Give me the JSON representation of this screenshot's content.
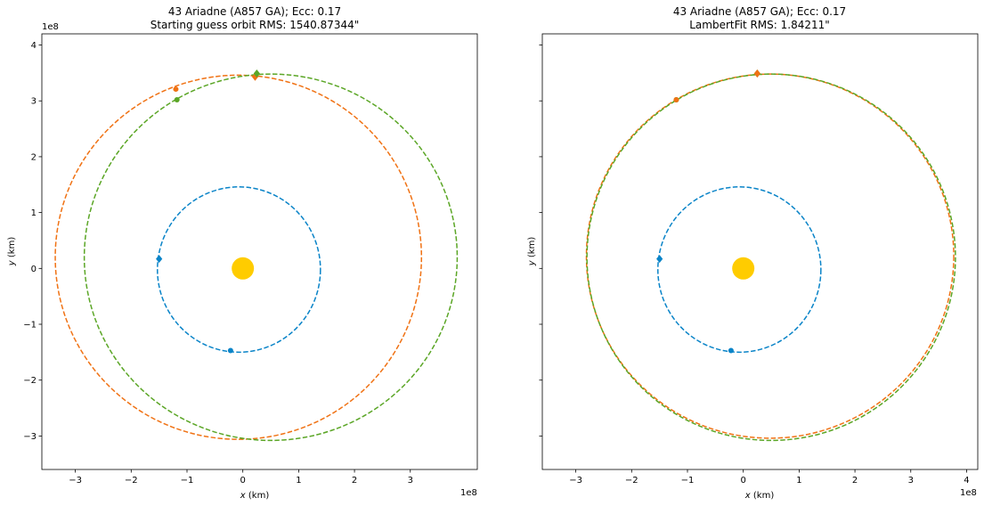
{
  "chart_data": [
    {
      "type": "scatter",
      "title_line1": "43 Ariadne (A857 GA); Ecc: 0.17",
      "title_line2": "Starting guess orbit RMS: 1540.87344\"",
      "xlabel": "x (km)",
      "ylabel": "y (km)",
      "x_offset_label": "1e8",
      "y_offset_label": "1e8",
      "xlim": [
        -3.6,
        4.2
      ],
      "ylim": [
        -3.6,
        4.2
      ],
      "xticks": [
        -3,
        -2,
        -1,
        0,
        1,
        2,
        3
      ],
      "yticks": [
        -3,
        -2,
        -1,
        0,
        1,
        2,
        3,
        4
      ],
      "tick_labels": [
        "−3",
        "−2",
        "−1",
        "0",
        "1",
        "2",
        "3",
        "4"
      ],
      "show_yticklabels": true,
      "sun": {
        "x": 0,
        "y": 0,
        "color": "#FFCC00"
      },
      "orbits": [
        {
          "color": "#1f77b4",
          "shade": "#0a84c8",
          "cx": -0.07,
          "cy": -0.02,
          "rx": 1.46,
          "ry": 1.48,
          "style": "dashed"
        },
        {
          "color": "#ff7f0e",
          "shade": "#f07214",
          "cx": -0.08,
          "cy": 0.2,
          "rx": 3.28,
          "ry": 3.26,
          "style": "dashed"
        },
        {
          "color": "#2ca02c",
          "shade": "#5ba626",
          "cx": 0.5,
          "cy": 0.2,
          "rx": 3.34,
          "ry": 3.28,
          "style": "dashed"
        }
      ],
      "points": [
        {
          "x": -1.5,
          "y": 0.17,
          "marker": "diamond",
          "color": "#0a84c8"
        },
        {
          "x": -0.22,
          "y": -1.47,
          "marker": "circle",
          "color": "#0a84c8"
        },
        {
          "x": 0.22,
          "y": 3.43,
          "marker": "diamond",
          "color": "#f07214"
        },
        {
          "x": -1.2,
          "y": 3.21,
          "marker": "circle",
          "color": "#f07214"
        },
        {
          "x": 0.25,
          "y": 3.49,
          "marker": "diamond",
          "color": "#5ba626"
        },
        {
          "x": -1.18,
          "y": 3.02,
          "marker": "circle",
          "color": "#5ba626"
        }
      ]
    },
    {
      "type": "scatter",
      "title_line1": "43 Ariadne (A857 GA); Ecc: 0.17",
      "title_line2": "LambertFit RMS: 1.84211\"",
      "xlabel": "x (km)",
      "ylabel": "y (km)",
      "x_offset_label": "1e8",
      "y_offset_label": "",
      "xlim": [
        -3.6,
        4.2
      ],
      "ylim": [
        -3.6,
        4.2
      ],
      "xticks": [
        -3,
        -2,
        -1,
        0,
        1,
        2,
        3,
        4
      ],
      "yticks": [
        -3,
        -2,
        -1,
        0,
        1,
        2,
        3,
        4
      ],
      "tick_labels": [
        "−3",
        "−2",
        "−1",
        "0",
        "1",
        "2",
        "3",
        "4"
      ],
      "show_yticklabels": false,
      "sun": {
        "x": 0,
        "y": 0,
        "color": "#FFCC00"
      },
      "orbits": [
        {
          "color": "#1f77b4",
          "shade": "#0a84c8",
          "cx": -0.07,
          "cy": -0.02,
          "rx": 1.46,
          "ry": 1.48,
          "style": "dashed"
        },
        {
          "color": "#ff7f0e",
          "shade": "#f07214",
          "cx": 0.48,
          "cy": 0.22,
          "rx": 3.29,
          "ry": 3.26,
          "style": "dashed"
        },
        {
          "color": "#2ca02c",
          "shade": "#5ba626",
          "cx": 0.5,
          "cy": 0.2,
          "rx": 3.3,
          "ry": 3.28,
          "style": "dashed"
        }
      ],
      "points": [
        {
          "x": -1.5,
          "y": 0.17,
          "marker": "diamond",
          "color": "#0a84c8"
        },
        {
          "x": -0.22,
          "y": -1.47,
          "marker": "circle",
          "color": "#0a84c8"
        },
        {
          "x": 0.25,
          "y": 3.49,
          "marker": "diamond",
          "color": "#5ba626"
        },
        {
          "x": -1.2,
          "y": 3.02,
          "marker": "circle",
          "color": "#5ba626"
        },
        {
          "x": 0.25,
          "y": 3.49,
          "marker": "diamond",
          "color": "#f07214"
        },
        {
          "x": -1.2,
          "y": 3.02,
          "marker": "circle",
          "color": "#f07214"
        }
      ]
    }
  ]
}
